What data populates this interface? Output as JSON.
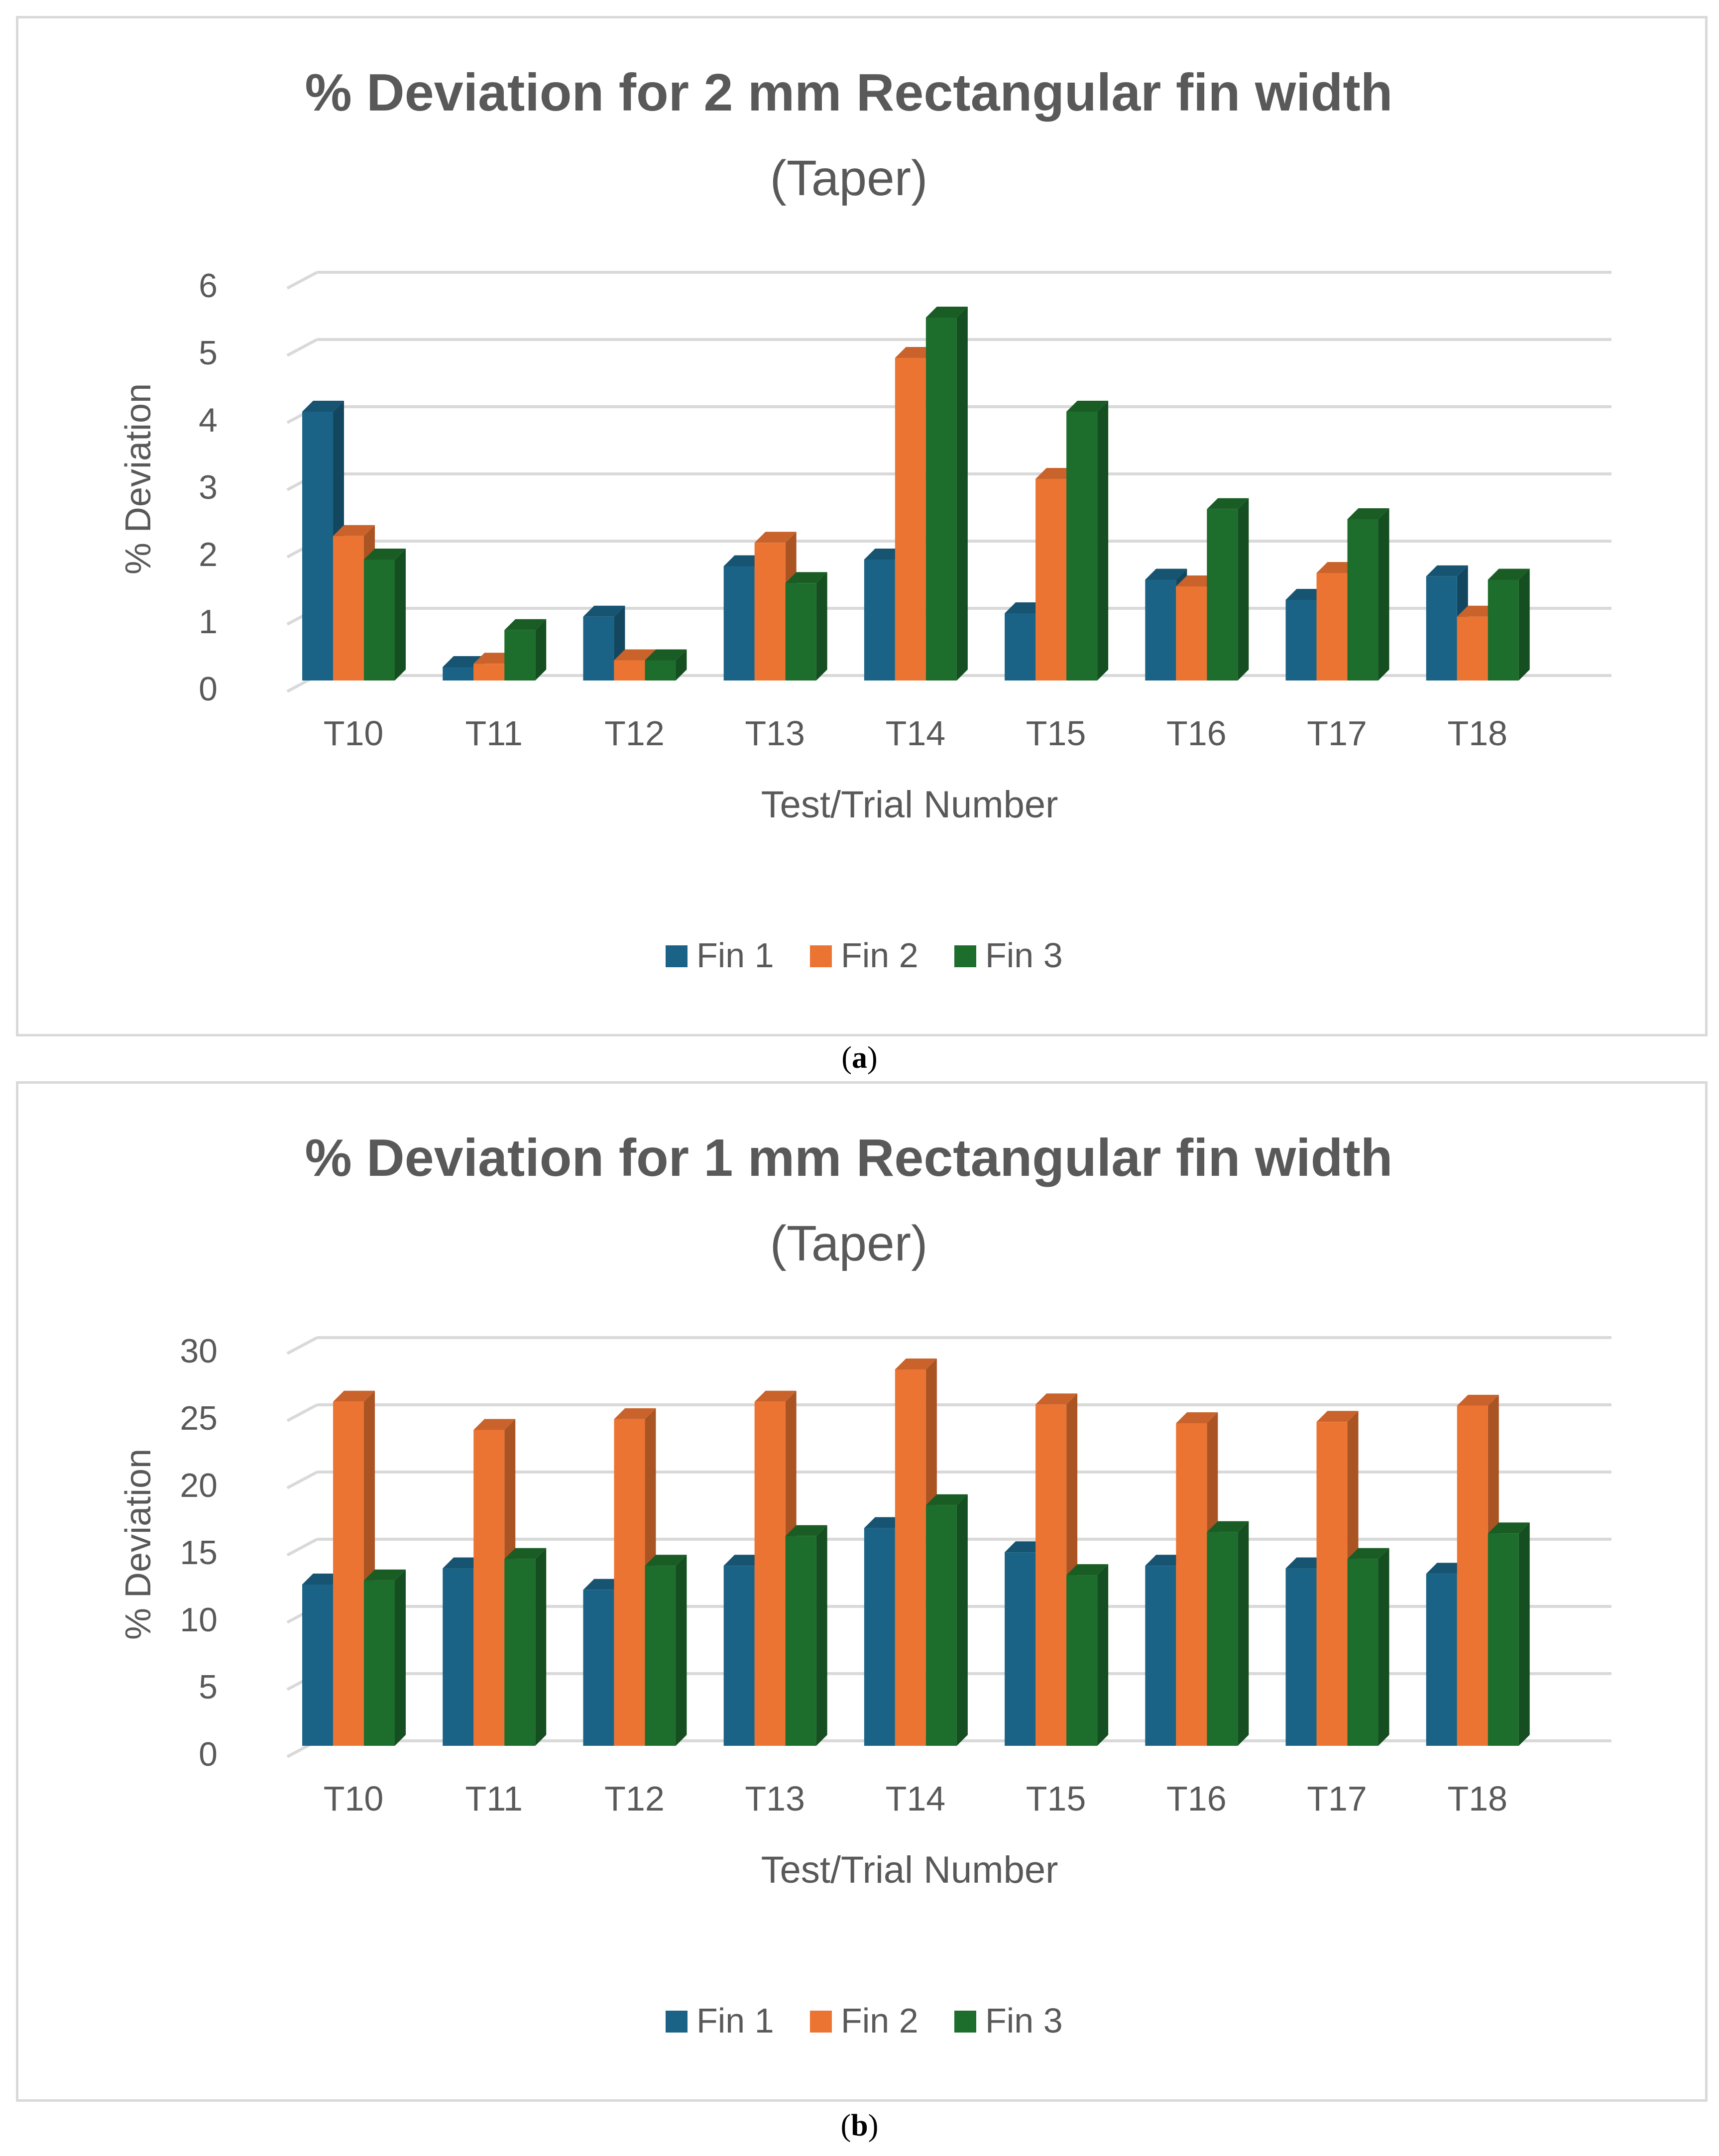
{
  "figure": {
    "captions": [
      "a",
      "b"
    ]
  },
  "colors": {
    "fin1": "#1a6386",
    "fin2": "#ec7432",
    "fin3": "#1d6d2c",
    "grid": "#d9d9d9",
    "text": "#595959"
  },
  "chart_data": [
    {
      "type": "bar",
      "title": "% Deviation for 2 mm Rectangular fin width",
      "subtitle": "(Taper)",
      "xlabel": "Test/Trial Number",
      "ylabel": "% Deviation",
      "ylim": [
        0,
        6
      ],
      "yticks": [
        "0",
        "1",
        "2",
        "3",
        "4",
        "5",
        "6"
      ],
      "grid": true,
      "legend": "bottom",
      "categories": [
        "T10",
        "T11",
        "T12",
        "T13",
        "T14",
        "T15",
        "T16",
        "T17",
        "T18"
      ],
      "series": [
        {
          "name": "Fin 1",
          "values": [
            4.0,
            0.2,
            0.95,
            1.7,
            1.8,
            1.0,
            1.5,
            1.2,
            1.55
          ]
        },
        {
          "name": "Fin 2",
          "values": [
            2.15,
            0.25,
            0.3,
            2.05,
            4.8,
            3.0,
            1.4,
            1.6,
            0.95
          ]
        },
        {
          "name": "Fin 3",
          "values": [
            1.8,
            0.75,
            0.3,
            1.45,
            5.4,
            4.0,
            2.55,
            2.4,
            1.5
          ]
        }
      ]
    },
    {
      "type": "bar",
      "title": "% Deviation for 1 mm Rectangular fin width",
      "subtitle": "(Taper)",
      "xlabel": "Test/Trial Number",
      "ylabel": "% Deviation",
      "ylim": [
        0,
        30
      ],
      "yticks": [
        "0",
        "5",
        "10",
        "15",
        "20",
        "25",
        "30"
      ],
      "grid": true,
      "legend": "bottom",
      "categories": [
        "T10",
        "T11",
        "T12",
        "T13",
        "T14",
        "T15",
        "T16",
        "T17",
        "T18"
      ],
      "series": [
        {
          "name": "Fin 1",
          "values": [
            12.0,
            13.2,
            11.6,
            13.4,
            16.2,
            14.4,
            13.4,
            13.2,
            12.8
          ]
        },
        {
          "name": "Fin 2",
          "values": [
            25.6,
            23.5,
            24.3,
            25.6,
            28.0,
            25.4,
            24.0,
            24.1,
            25.3
          ]
        },
        {
          "name": "Fin 3",
          "values": [
            12.3,
            13.9,
            13.4,
            15.6,
            17.9,
            12.7,
            15.9,
            13.9,
            15.8
          ]
        }
      ]
    }
  ]
}
